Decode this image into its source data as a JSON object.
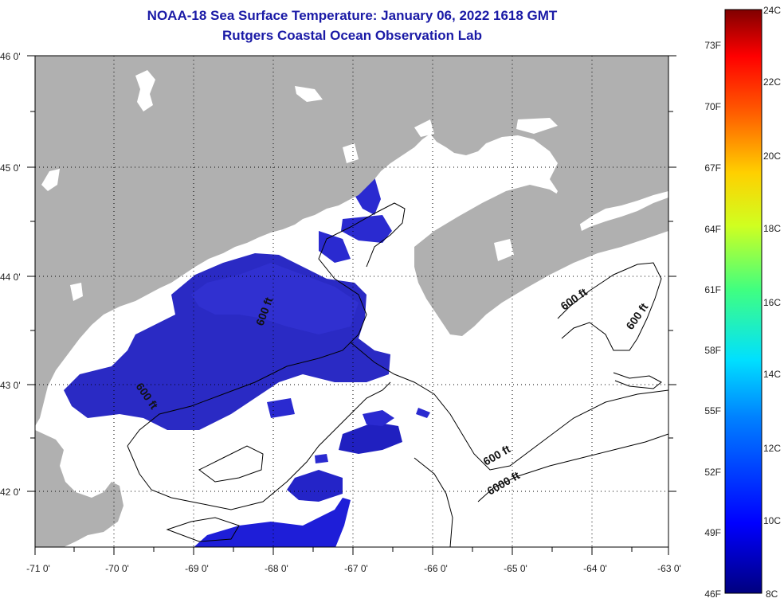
{
  "title_line1": "NOAA-18 Sea Surface Temperature:  January 06, 2022 1618 GMT",
  "title_line2": "Rutgers Coastal Ocean Observation Lab",
  "lat_labels": [
    "46 0'",
    "45 0'",
    "44 0'",
    "43 0'",
    "42 0'"
  ],
  "lon_labels": [
    "-71 0'",
    "-70 0'",
    "-69 0'",
    "-68 0'",
    "-67 0'",
    "-66 0'",
    "-65 0'",
    "-64 0'",
    "-63 0'"
  ],
  "contour_labels": [
    "600 ft",
    "600 ft",
    "600 ft",
    "600 ft",
    "600 ft",
    "6000 ft"
  ],
  "colorbar": {
    "f_labels": [
      "73F",
      "70F",
      "67F",
      "64F",
      "61F",
      "58F",
      "55F",
      "52F",
      "49F",
      "46F"
    ],
    "c_labels": [
      "24C",
      "22C",
      "20C",
      "18C",
      "16C",
      "14C",
      "12C",
      "10C",
      "8C"
    ]
  },
  "colors": {
    "land": "#b0b0b0",
    "ocean": "#ffffff",
    "sst_blue": "#2020c8",
    "title": "#1a1aa6"
  }
}
